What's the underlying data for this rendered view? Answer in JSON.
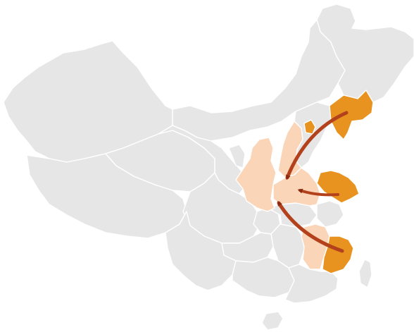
{
  "map": {
    "colors": {
      "base": "#e6e6e6",
      "border": "#ffffff",
      "origin": "#e89320",
      "destination": "#fad5b8",
      "arrow": "#b3421c",
      "arrowhead": "#8a2a10"
    },
    "legend": [],
    "regions": [
      {
        "id": "northeast",
        "role": "base"
      },
      {
        "id": "inner-mongolia",
        "role": "base"
      },
      {
        "id": "xinjiang",
        "role": "base"
      },
      {
        "id": "tibet",
        "role": "base"
      },
      {
        "id": "qinghai",
        "role": "base"
      },
      {
        "id": "gansu",
        "role": "base"
      },
      {
        "id": "ningxia",
        "role": "base"
      },
      {
        "id": "sichuan",
        "role": "base"
      },
      {
        "id": "yunnan",
        "role": "base"
      },
      {
        "id": "guizhou",
        "role": "base"
      },
      {
        "id": "guangxi",
        "role": "base"
      },
      {
        "id": "guangdong",
        "role": "base"
      },
      {
        "id": "hunan",
        "role": "base"
      },
      {
        "id": "chongqing",
        "role": "base"
      },
      {
        "id": "hubei",
        "role": "base"
      },
      {
        "id": "hainan",
        "role": "base"
      },
      {
        "id": "taiwan",
        "role": "base"
      },
      {
        "id": "hebei",
        "role": "base"
      },
      {
        "id": "anhui",
        "role": "base"
      },
      {
        "id": "liaoning",
        "role": "origin"
      },
      {
        "id": "shandong",
        "role": "origin"
      },
      {
        "id": "zhejiang",
        "role": "origin"
      },
      {
        "id": "beijing",
        "role": "origin"
      },
      {
        "id": "shanxi",
        "role": "destination"
      },
      {
        "id": "shaanxi",
        "role": "destination"
      },
      {
        "id": "henan",
        "role": "destination"
      },
      {
        "id": "jiangxi",
        "role": "destination"
      }
    ],
    "flows": [
      {
        "from": "liaoning",
        "to": "henan"
      },
      {
        "from": "shandong",
        "to": "henan"
      },
      {
        "from": "zhejiang",
        "to": "henan"
      }
    ]
  }
}
